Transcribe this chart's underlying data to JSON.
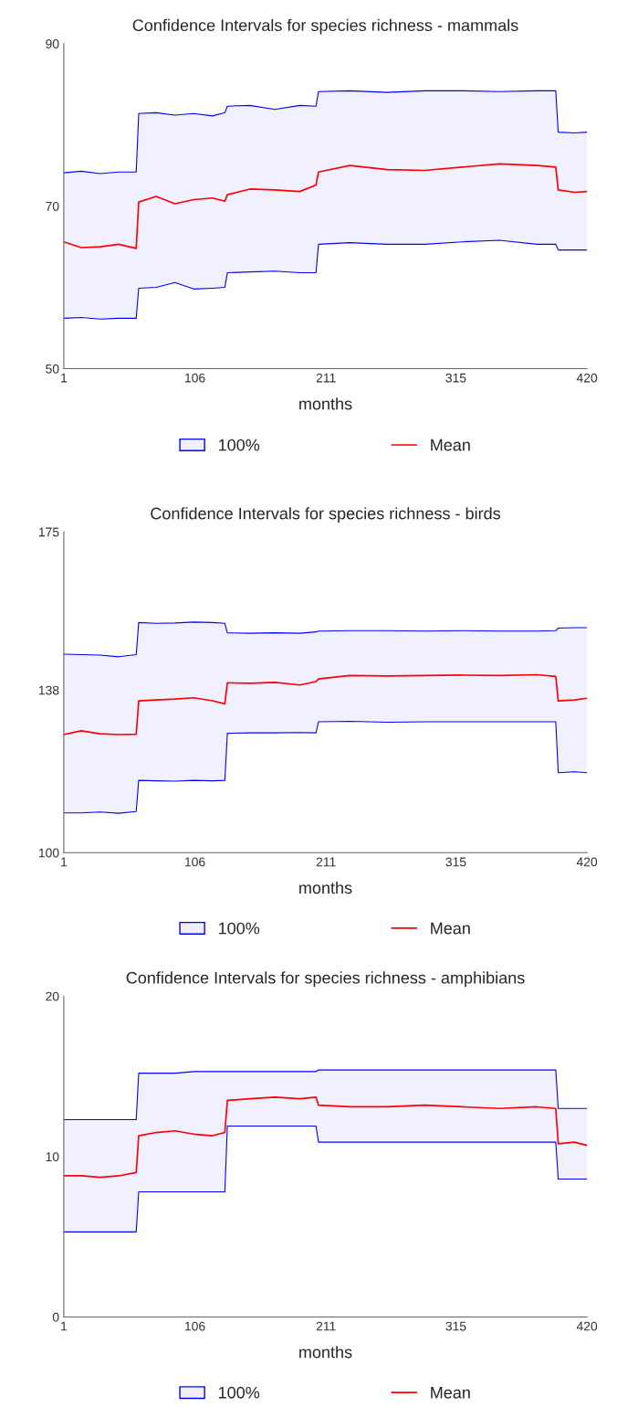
{
  "chart_data": [
    {
      "type": "line",
      "title": "Confidence Intervals for species richness - mammals",
      "xlabel": "months",
      "legend": "bottom",
      "grid": false,
      "x": [
        1,
        15,
        30,
        45,
        59,
        61,
        75,
        90,
        105,
        120,
        130,
        132,
        150,
        170,
        190,
        203,
        205,
        230,
        260,
        290,
        320,
        350,
        380,
        395,
        397,
        410,
        420
      ],
      "xlim": [
        1,
        420
      ],
      "xticks": [
        1,
        106,
        211,
        315,
        420
      ],
      "ylim": [
        50,
        90
      ],
      "yticks": [
        50,
        70,
        90
      ],
      "series": [
        {
          "name": "100%",
          "type": "area",
          "color": "#0000ff",
          "values": [
            74.1,
            74.3,
            74.0,
            74.2,
            74.2,
            81.4,
            81.5,
            81.2,
            81.4,
            81.1,
            81.5,
            82.3,
            82.4,
            81.9,
            82.4,
            82.3,
            84.1,
            84.2,
            84.0,
            84.2,
            84.2,
            84.1,
            84.2,
            84.2,
            79.1,
            79.0,
            79.1
          ]
        },
        {
          "type": "line",
          "color": "#0000ff",
          "values": [
            56.2,
            56.3,
            56.1,
            56.2,
            56.2,
            59.9,
            60.0,
            60.6,
            59.8,
            59.9,
            60.0,
            61.8,
            61.9,
            62.0,
            61.8,
            61.8,
            65.3,
            65.5,
            65.3,
            65.3,
            65.6,
            65.8,
            65.3,
            65.3,
            64.6,
            64.6,
            64.6
          ]
        },
        {
          "name": "Mean",
          "type": "line",
          "color": "#ff0000",
          "values": [
            65.6,
            64.9,
            65.0,
            65.3,
            64.8,
            70.5,
            71.2,
            70.3,
            70.8,
            71.0,
            70.6,
            71.4,
            72.1,
            72.0,
            71.8,
            72.6,
            74.2,
            75.0,
            74.5,
            74.4,
            74.8,
            75.2,
            75.0,
            74.8,
            72.0,
            71.7,
            71.8
          ]
        }
      ]
    },
    {
      "type": "line",
      "title": "Confidence Intervals for species richness - birds",
      "xlabel": "months",
      "legend": "bottom",
      "grid": false,
      "x": [
        1,
        15,
        30,
        45,
        59,
        61,
        75,
        90,
        105,
        120,
        130,
        132,
        150,
        170,
        190,
        203,
        205,
        230,
        260,
        290,
        320,
        350,
        380,
        395,
        397,
        410,
        420
      ],
      "xlim": [
        1,
        420
      ],
      "xticks": [
        1,
        106,
        211,
        315,
        420
      ],
      "ylim": [
        100,
        175
      ],
      "yticks": [
        100,
        138,
        175
      ],
      "series": [
        {
          "name": "100%",
          "type": "area",
          "color": "#0000ff",
          "values": [
            146.4,
            146.3,
            146.2,
            145.8,
            146.3,
            153.8,
            153.6,
            153.7,
            153.9,
            153.8,
            153.6,
            151.4,
            151.3,
            151.4,
            151.3,
            151.6,
            151.8,
            151.9,
            151.9,
            151.8,
            151.9,
            151.8,
            151.8,
            151.9,
            152.5,
            152.6,
            152.6
          ]
        },
        {
          "type": "line",
          "color": "#0000ff",
          "values": [
            109.3,
            109.3,
            109.5,
            109.2,
            109.6,
            116.9,
            116.8,
            116.7,
            116.9,
            116.8,
            116.9,
            127.9,
            128.0,
            128.0,
            128.1,
            128.0,
            130.6,
            130.7,
            130.5,
            130.6,
            130.6,
            130.6,
            130.6,
            130.6,
            118.7,
            118.9,
            118.7
          ]
        },
        {
          "name": "Mean",
          "type": "line",
          "color": "#ff0000",
          "values": [
            127.6,
            128.5,
            127.8,
            127.6,
            127.7,
            135.5,
            135.7,
            135.9,
            136.2,
            135.5,
            134.8,
            139.7,
            139.6,
            139.8,
            139.2,
            140.0,
            140.6,
            141.4,
            141.3,
            141.4,
            141.5,
            141.4,
            141.6,
            141.2,
            135.5,
            135.7,
            136.1
          ]
        }
      ]
    },
    {
      "type": "line",
      "title": "Confidence Intervals for species richness - amphibians",
      "xlabel": "months",
      "legend": "bottom",
      "grid": false,
      "x": [
        1,
        15,
        30,
        45,
        59,
        61,
        75,
        90,
        105,
        120,
        130,
        132,
        150,
        170,
        190,
        203,
        205,
        230,
        260,
        290,
        320,
        350,
        380,
        395,
        397,
        410,
        420
      ],
      "xlim": [
        1,
        420
      ],
      "xticks": [
        1,
        106,
        211,
        315,
        420
      ],
      "ylim": [
        0,
        20
      ],
      "yticks": [
        0,
        10,
        20
      ],
      "series": [
        {
          "name": "100%",
          "type": "area",
          "color": "#0000ff",
          "values": [
            12.3,
            12.3,
            12.3,
            12.3,
            12.3,
            15.2,
            15.2,
            15.2,
            15.3,
            15.3,
            15.3,
            15.3,
            15.3,
            15.3,
            15.3,
            15.3,
            15.4,
            15.4,
            15.4,
            15.4,
            15.4,
            15.4,
            15.4,
            15.4,
            13.0,
            13.0,
            13.0
          ]
        },
        {
          "type": "line",
          "color": "#0000ff",
          "values": [
            5.3,
            5.3,
            5.3,
            5.3,
            5.3,
            7.8,
            7.8,
            7.8,
            7.8,
            7.8,
            7.8,
            11.9,
            11.9,
            11.9,
            11.9,
            11.9,
            10.9,
            10.9,
            10.9,
            10.9,
            10.9,
            10.9,
            10.9,
            10.9,
            8.6,
            8.6,
            8.6
          ]
        },
        {
          "name": "Mean",
          "type": "line",
          "color": "#ff0000",
          "values": [
            8.8,
            8.8,
            8.7,
            8.8,
            9.0,
            11.3,
            11.5,
            11.6,
            11.4,
            11.3,
            11.5,
            13.5,
            13.6,
            13.7,
            13.6,
            13.7,
            13.2,
            13.1,
            13.1,
            13.2,
            13.1,
            13.0,
            13.1,
            13.0,
            10.8,
            10.9,
            10.7
          ]
        }
      ]
    }
  ]
}
